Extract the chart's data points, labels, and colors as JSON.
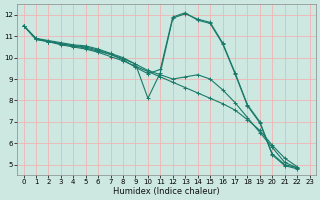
{
  "xlabel": "Humidex (Indice chaleur)",
  "bg_color": "#cce8e0",
  "grid_color": "#f0b4b4",
  "line_color": "#1a7a6a",
  "xlim": [
    -0.5,
    23.5
  ],
  "ylim": [
    4.5,
    12.5
  ],
  "yticks": [
    5,
    6,
    7,
    8,
    9,
    10,
    11,
    12
  ],
  "xticks": [
    0,
    1,
    2,
    3,
    4,
    5,
    6,
    7,
    8,
    9,
    10,
    11,
    12,
    13,
    14,
    15,
    16,
    17,
    18,
    19,
    20,
    21,
    22,
    23
  ],
  "series": [
    {
      "x": [
        0,
        1,
        2,
        3,
        4,
        5,
        6,
        7,
        8,
        9,
        10,
        11,
        12,
        13,
        14,
        15,
        16,
        17,
        18,
        19,
        20,
        21,
        22
      ],
      "y": [
        11.5,
        10.9,
        10.75,
        10.6,
        10.5,
        10.4,
        10.25,
        10.05,
        9.85,
        9.6,
        9.35,
        9.1,
        8.85,
        8.6,
        8.35,
        8.1,
        7.85,
        7.55,
        7.1,
        6.6,
        5.9,
        5.3,
        4.9
      ]
    },
    {
      "x": [
        0,
        1,
        2,
        3,
        4,
        5,
        6,
        7,
        8,
        9,
        10,
        11,
        12,
        13,
        14,
        15,
        16,
        17,
        18,
        19,
        20,
        21,
        22
      ],
      "y": [
        11.5,
        10.85,
        10.75,
        10.65,
        10.55,
        10.45,
        10.3,
        10.15,
        9.95,
        9.7,
        9.4,
        9.2,
        9.0,
        9.1,
        9.2,
        9.0,
        8.5,
        7.9,
        7.2,
        6.5,
        5.8,
        5.1,
        4.85
      ]
    },
    {
      "x": [
        0,
        1,
        2,
        3,
        4,
        5,
        6,
        7,
        8,
        9,
        10,
        11,
        12,
        13,
        14,
        15,
        16,
        17,
        18,
        19,
        20,
        21,
        22
      ],
      "y": [
        11.5,
        10.9,
        10.8,
        10.7,
        10.6,
        10.55,
        10.4,
        10.2,
        10.0,
        9.7,
        8.1,
        9.3,
        11.85,
        12.05,
        11.8,
        11.65,
        10.7,
        9.3,
        7.8,
        7.0,
        5.5,
        5.0,
        4.85
      ]
    },
    {
      "x": [
        0,
        1,
        2,
        3,
        4,
        5,
        6,
        7,
        8,
        9,
        10,
        11,
        12,
        13,
        14,
        15,
        16,
        17,
        18,
        19,
        20,
        21,
        22
      ],
      "y": [
        11.5,
        10.85,
        10.75,
        10.65,
        10.55,
        10.5,
        10.35,
        10.15,
        9.9,
        9.55,
        9.25,
        9.45,
        11.9,
        12.1,
        11.75,
        11.6,
        10.65,
        9.25,
        7.75,
        6.95,
        5.45,
        4.95,
        4.8
      ]
    }
  ]
}
